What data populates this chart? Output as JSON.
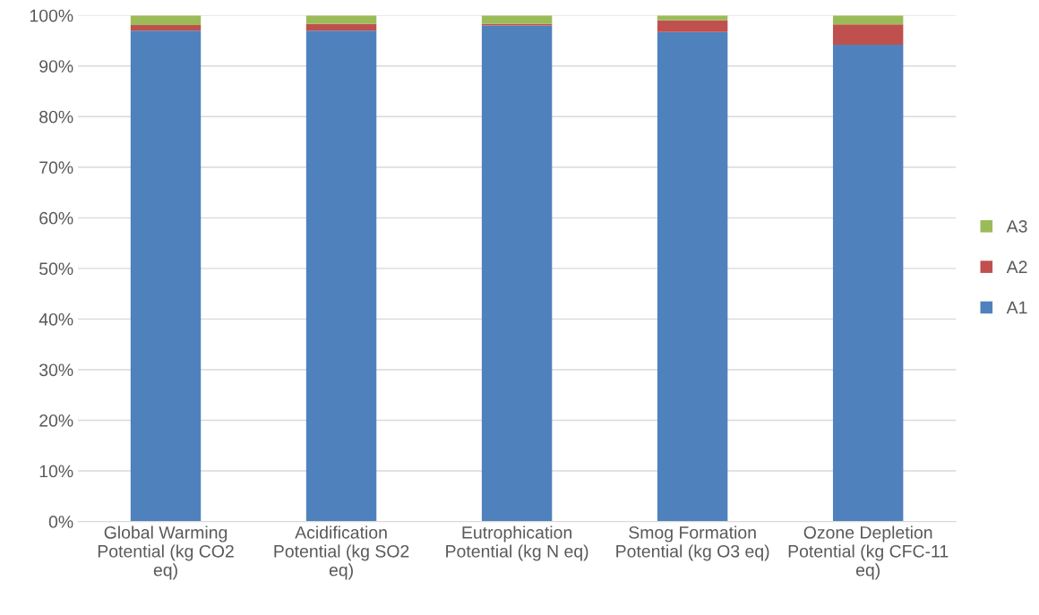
{
  "chart_data": {
    "type": "bar",
    "stacked": true,
    "categories": [
      "Global Warming\nPotential (kg CO2\neq)",
      "Acidification\nPotential (kg SO2\neq)",
      "Eutrophication\nPotential (kg N eq)",
      "Smog Formation\nPotential (kg O3 eq)",
      "Ozone Depletion\nPotential (kg CFC-11\neq)"
    ],
    "series": [
      {
        "name": "A1",
        "color": "#4f81bd",
        "values": [
          97.0,
          97.0,
          98.0,
          96.7,
          94.2
        ]
      },
      {
        "name": "A2",
        "color": "#c0504d",
        "values": [
          1.1,
          1.3,
          0.3,
          2.3,
          4.0
        ]
      },
      {
        "name": "A3",
        "color": "#9bbb59",
        "values": [
          1.9,
          1.7,
          1.7,
          1.0,
          1.8
        ]
      }
    ],
    "ylim": [
      0,
      100
    ],
    "yticks": [
      {
        "value": 0,
        "label": "0%"
      },
      {
        "value": 10,
        "label": "10%"
      },
      {
        "value": 20,
        "label": "20%"
      },
      {
        "value": 30,
        "label": "30%"
      },
      {
        "value": 40,
        "label": "40%"
      },
      {
        "value": 50,
        "label": "50%"
      },
      {
        "value": 60,
        "label": "60%"
      },
      {
        "value": 70,
        "label": "70%"
      },
      {
        "value": 80,
        "label": "80%"
      },
      {
        "value": 90,
        "label": "90%"
      },
      {
        "value": 100,
        "label": "100%"
      }
    ],
    "grid": "y",
    "legend": "right"
  }
}
